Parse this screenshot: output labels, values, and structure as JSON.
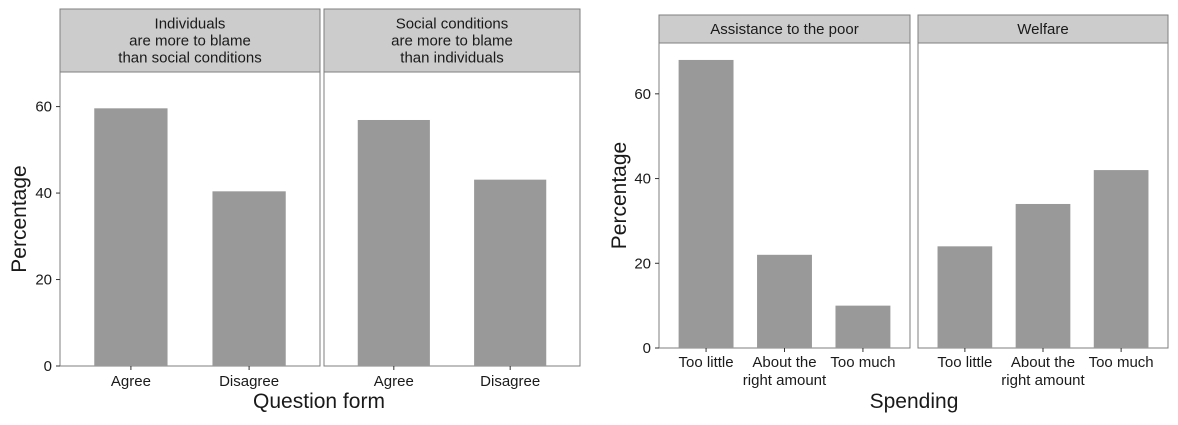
{
  "chart_data": [
    {
      "type": "bar",
      "xlabel": "Question form",
      "ylabel": "Percentage",
      "ylim": [
        0,
        68
      ],
      "yticks": [
        0,
        20,
        40,
        60
      ],
      "categories": [
        "Agree",
        "Disagree"
      ],
      "bar_color": "#999999",
      "strip_color": "#cccccc",
      "panel_border_color": "#7f7f7f",
      "grid": false,
      "panels": [
        {
          "strip": [
            "Individuals",
            "are more to blame",
            "than social conditions"
          ],
          "values": [
            59.6,
            40.4
          ]
        },
        {
          "strip": [
            "Social conditions",
            "are more to blame",
            "than individuals"
          ],
          "values": [
            56.9,
            43.1
          ]
        }
      ]
    },
    {
      "type": "bar",
      "xlabel": "Spending",
      "ylabel": "Percentage",
      "ylim": [
        0,
        72
      ],
      "yticks": [
        0,
        20,
        40,
        60
      ],
      "categories": [
        [
          "Too little"
        ],
        [
          "About the",
          "right amount"
        ],
        [
          "Too much"
        ]
      ],
      "bar_color": "#999999",
      "strip_color": "#cccccc",
      "panel_border_color": "#7f7f7f",
      "grid": false,
      "panels": [
        {
          "strip": [
            "Assistance to the poor"
          ],
          "values": [
            68,
            22,
            10
          ]
        },
        {
          "strip": [
            "Welfare"
          ],
          "values": [
            24,
            34,
            42
          ]
        }
      ]
    }
  ]
}
